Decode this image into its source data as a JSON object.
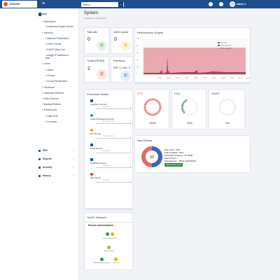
{
  "header": {
    "logo_text": "TotalPBX",
    "search_placeholder": "Search",
    "user_name": "admin"
  },
  "sidebar": {
    "items": [
      {
        "label": "System",
        "level": 0
      },
      {
        "label": "Dashboard",
        "level": 1
      },
      {
        "label": "Dashboard Applet Admin",
        "level": 2
      },
      {
        "label": "Network",
        "level": 1
      },
      {
        "label": "Network Parameters",
        "level": 2
      },
      {
        "label": "DHCP Server",
        "level": 2
      },
      {
        "label": "DHCP Client List",
        "level": 2
      },
      {
        "label": "Assign IP Address to Mac",
        "level": 2
      },
      {
        "label": "Users",
        "level": 1
      },
      {
        "label": "Users",
        "level": 2
      },
      {
        "label": "Groups",
        "level": 2
      },
      {
        "label": "Group Permissions",
        "level": 2
      },
      {
        "label": "Shutdown",
        "level": 1
      },
      {
        "label": "Hardware Detector",
        "level": 1
      },
      {
        "label": "Help Channel",
        "level": 1
      },
      {
        "label": "Backup/Restore",
        "level": 1
      },
      {
        "label": "Preferences",
        "level": 1
      },
      {
        "label": "Date/Time",
        "level": 2
      },
      {
        "label": "Currency",
        "level": 2
      },
      {
        "label": "PBX",
        "level": 0
      },
      {
        "label": "Reports",
        "level": 0
      },
      {
        "label": "Security",
        "level": 0
      },
      {
        "label": "History",
        "level": 0
      }
    ]
  },
  "page": {
    "title": "System",
    "breadcrumb": "Dashboard / Dashboard"
  },
  "kpis": {
    "total_calls": {
      "label": "Total calls",
      "value": "0"
    },
    "calls_in_queue": {
      "label": "Calls in queue",
      "value": "0"
    },
    "trunks": {
      "label": "Trunks (SIP/IAX)",
      "value": "2"
    },
    "extensions": {
      "label": "Extensions",
      "value": "SIP: 1, IAX: 0"
    }
  },
  "performance": {
    "title": "Performance Graphs",
    "legend": [
      "Sim. calls",
      "CPU usage (%)",
      "Mem. usage (%)"
    ],
    "y_ticks": [
      "100",
      "80",
      "60",
      "40",
      "20",
      "0"
    ],
    "x_ticks": [
      "12:00",
      "14:00",
      "16:00",
      "18:00",
      "20:00",
      "22:00",
      "00:00",
      "02:00",
      "04:00",
      "06:00",
      "08:00"
    ]
  },
  "processes": {
    "title": "Processes Status",
    "items": [
      {
        "name": "Telephony Service",
        "status": "RUNNING",
        "color": "#1f4e8c"
      },
      {
        "name": "Instant Messaging Service",
        "status": "NOT INSTALLED",
        "color": "#1aa88a"
      },
      {
        "name": "Fax Service",
        "status": "NOT INSTALLED",
        "color": "#e8b400"
      },
      {
        "name": "Email Service",
        "status": "RUNNING",
        "color": "#1f4e8c"
      },
      {
        "name": "Database Service",
        "status": "RUNNING",
        "color": "#1f4e8c"
      },
      {
        "name": "Web Server",
        "status": "RUNNING",
        "color": "#d93a3a"
      }
    ]
  },
  "gauges": [
    {
      "title": "CPU",
      "value": "100%",
      "color": "#e0443a"
    },
    {
      "title": "RAM",
      "value": "31%",
      "color": "#2e8b4f"
    },
    {
      "title": "SWAP",
      "value": "1%",
      "color": "#9aa3ad"
    }
  ],
  "hard_drives": {
    "title": "Hard Drives",
    "donut_label": "50",
    "used_pct": 50,
    "lines": [
      "Disk Used : 50%",
      "Disk Available : 50%",
      "Hard Disk Capacity : 15.76GB",
      "Mount Point : /",
      "Manufacturer : VBOX HARDDISK"
    ],
    "button": "Total directory report"
  },
  "network": {
    "title": "TrixPX Network",
    "subtitle": "Remote Administration",
    "nodes": [
      {
        "label": "License (Activated)",
        "color": "#2c9a4a"
      },
      {
        "label": "License (Expired)",
        "color": "#e8b400"
      },
      {
        "label": "Remote Control",
        "color": "#8bc34a"
      },
      {
        "label": "Available Administration",
        "color": "#2c9a4a"
      },
      {
        "label": "Web Link",
        "color": "#e8b400"
      }
    ]
  },
  "colors": {
    "brand": "#1f4e8c",
    "cpu_fill": "#e8a0a8",
    "mem_fill": "#b04060",
    "calls": "#2c9a4a"
  }
}
